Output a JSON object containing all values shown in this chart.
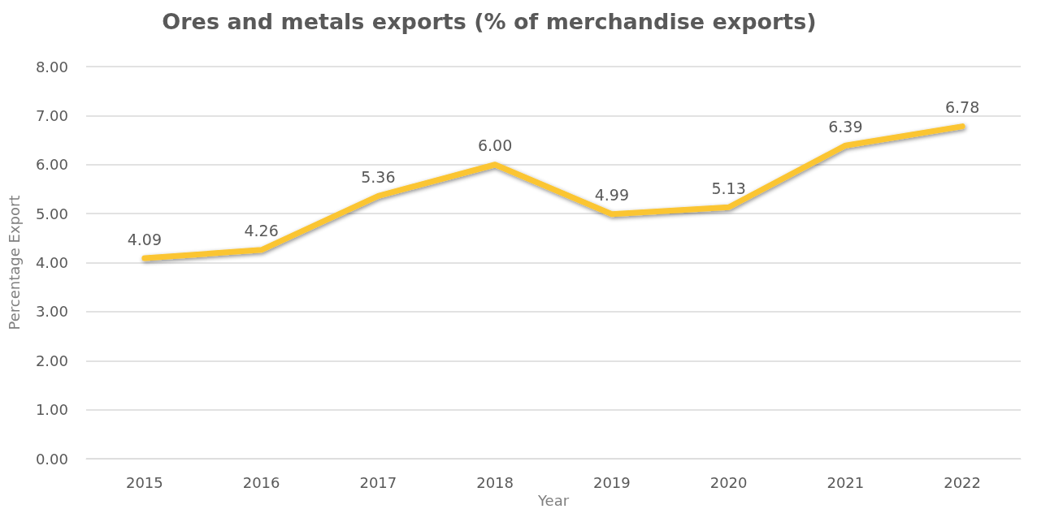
{
  "chart_data": {
    "type": "line",
    "title": "Ores and metals exports (% of merchandise exports)",
    "xlabel": "Year",
    "ylabel": "Percentage Export",
    "categories": [
      "2015",
      "2016",
      "2017",
      "2018",
      "2019",
      "2020",
      "2021",
      "2022"
    ],
    "series": [
      {
        "color": "#fbc531",
        "values": [
          4.09,
          4.26,
          5.36,
          6.0,
          4.99,
          5.13,
          6.39,
          6.78
        ],
        "value_labels": [
          "4.09",
          "4.26",
          "5.36",
          "6.00",
          "4.99",
          "5.13",
          "6.39",
          "6.78"
        ]
      }
    ],
    "ylim": [
      0,
      8
    ],
    "yticks": [
      {
        "value": 0,
        "label": "0.00"
      },
      {
        "value": 1,
        "label": "1.00"
      },
      {
        "value": 2,
        "label": "2.00"
      },
      {
        "value": 3,
        "label": "3.00"
      },
      {
        "value": 4,
        "label": "4.00"
      },
      {
        "value": 5,
        "label": "5.00"
      },
      {
        "value": 6,
        "label": "6.00"
      },
      {
        "value": 7,
        "label": "7.00"
      },
      {
        "value": 8,
        "label": "8.00"
      }
    ],
    "grid": "y",
    "marker": "none",
    "line_style": "solid"
  }
}
